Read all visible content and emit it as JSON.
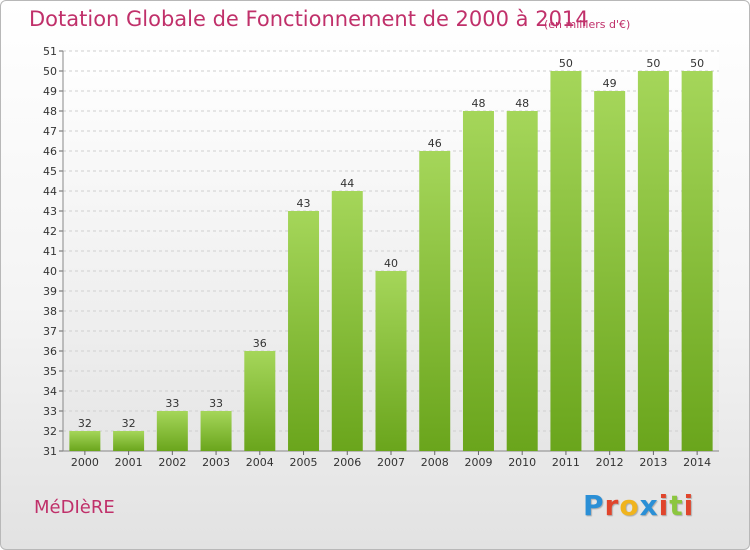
{
  "title": "Dotation Globale de Fonctionnement de 2000 à 2014",
  "subtitle": "(en milliers d'€)",
  "commune": "MéDIèRE",
  "logo": {
    "letters": [
      "P",
      "r",
      "o",
      "x",
      "i",
      "t",
      "i"
    ],
    "colors": [
      "#2a8fd6",
      "#e0452c",
      "#f0b41e",
      "#2a8fd6",
      "#e0452c",
      "#8cc63f",
      "#e0452c"
    ]
  },
  "colors": {
    "bar_light": "#a5d65a",
    "bar_dark": "#6aa51c",
    "title": "#c0306a"
  },
  "chart_data": {
    "type": "bar",
    "title": "Dotation Globale de Fonctionnement de 2000 à 2014",
    "subtitle": "(en milliers d'€)",
    "categories": [
      "2000",
      "2001",
      "2002",
      "2003",
      "2004",
      "2005",
      "2006",
      "2007",
      "2008",
      "2009",
      "2010",
      "2011",
      "2012",
      "2013",
      "2014"
    ],
    "values": [
      32,
      32,
      33,
      33,
      36,
      43,
      44,
      40,
      46,
      48,
      48,
      50,
      49,
      50,
      50
    ],
    "ylim": [
      31,
      51
    ],
    "yticks": [
      31,
      32,
      33,
      34,
      35,
      36,
      37,
      38,
      39,
      40,
      41,
      42,
      43,
      44,
      45,
      46,
      47,
      48,
      49,
      50,
      51
    ],
    "grid": true,
    "data_labels": true
  }
}
